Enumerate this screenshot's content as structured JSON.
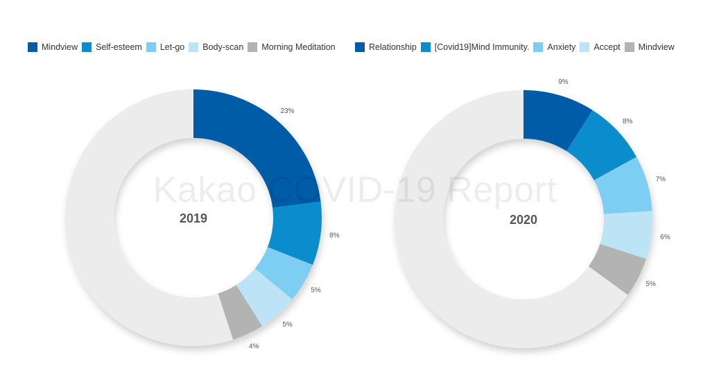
{
  "watermark": "Kakao COVID-19 Report",
  "colors": {
    "remainder": "#ececec",
    "shadow": "#d9d9d9"
  },
  "chart_data": [
    {
      "type": "pie",
      "variant": "donut",
      "center_label": "2019",
      "legend_position": "top",
      "slices": [
        {
          "name": "Mindview",
          "value": 23,
          "label": "23%",
          "color": "#005ca6"
        },
        {
          "name": "Self-esteem",
          "value": 8,
          "label": "8%",
          "color": "#0a8ccd"
        },
        {
          "name": "Let-go",
          "value": 5,
          "label": "5%",
          "color": "#7ecdf2"
        },
        {
          "name": "Body-scan",
          "value": 5,
          "label": "5%",
          "color": "#bde4f6"
        },
        {
          "name": "Morning Meditation",
          "value": 4,
          "label": "4%",
          "color": "#b3b3b3"
        }
      ]
    },
    {
      "type": "pie",
      "variant": "donut",
      "center_label": "2020",
      "legend_position": "top",
      "slices": [
        {
          "name": "Relationship",
          "value": 9,
          "label": "9%",
          "color": "#005ca6"
        },
        {
          "name": "[Covid19]Mind Immunity.",
          "value": 8,
          "label": "8%",
          "color": "#0a8ccd"
        },
        {
          "name": "Anxiety",
          "value": 7,
          "label": "7%",
          "color": "#7ecdf2"
        },
        {
          "name": "Accept",
          "value": 6,
          "label": "6%",
          "color": "#bde4f6"
        },
        {
          "name": "Mindview",
          "value": 5,
          "label": "5%",
          "color": "#b3b3b3"
        }
      ]
    }
  ]
}
